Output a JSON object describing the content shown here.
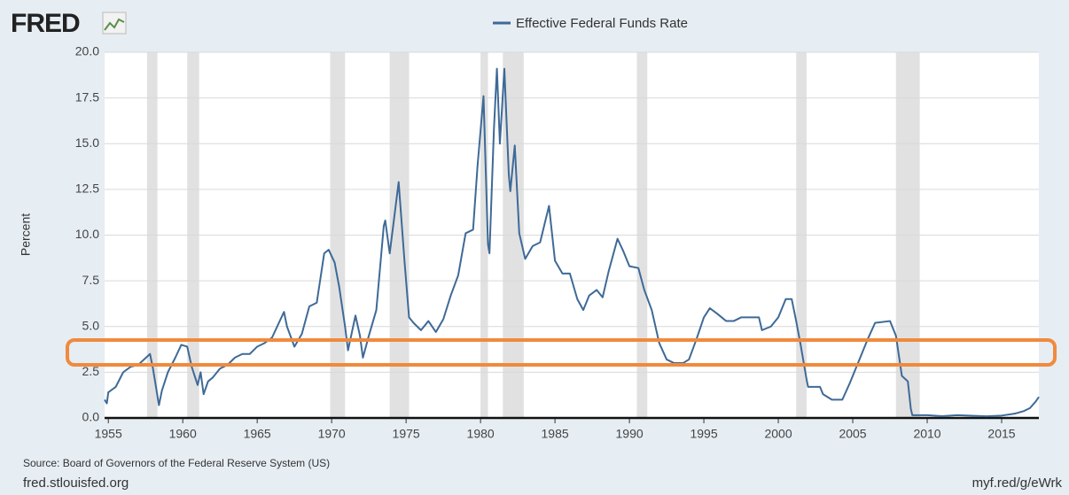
{
  "chart_data": {
    "type": "line",
    "logo": "FRED",
    "legend": "Effective Federal Funds Rate",
    "ylabel": "Percent",
    "source": "Source: Board of Governors of the Federal Reserve System (US)",
    "footer_left": "fred.stlouisfed.org",
    "footer_right": "myf.red/g/eWrk",
    "xlim": [
      1954.75,
      2017.5
    ],
    "ylim": [
      0,
      20
    ],
    "xticks": [
      1955,
      1960,
      1965,
      1970,
      1975,
      1980,
      1985,
      1990,
      1995,
      2000,
      2005,
      2010,
      2015
    ],
    "yticks": [
      {
        "value": 0,
        "label": "0.0"
      },
      {
        "value": 2.5,
        "label": "2.5"
      },
      {
        "value": 5,
        "label": "5.0"
      },
      {
        "value": 7.5,
        "label": "7.5"
      },
      {
        "value": 10,
        "label": "10.0"
      },
      {
        "value": 12.5,
        "label": "12.5"
      },
      {
        "value": 15,
        "label": "15.0"
      },
      {
        "value": 17.5,
        "label": "17.5"
      },
      {
        "value": 20,
        "label": "20.0"
      }
    ],
    "grid": true,
    "recession_color": "#e1e1e1",
    "recessions": [
      [
        1957.6,
        1958.3
      ],
      [
        1960.3,
        1961.1
      ],
      [
        1969.9,
        1970.9
      ],
      [
        1973.9,
        1975.2
      ],
      [
        1980.0,
        1980.5
      ],
      [
        1981.5,
        1982.9
      ],
      [
        1990.5,
        1991.2
      ],
      [
        2001.2,
        2001.9
      ],
      [
        2007.9,
        2009.5
      ]
    ],
    "x": [
      1954.75,
      1954.9,
      1955.0,
      1955.5,
      1956.0,
      1956.5,
      1957.0,
      1957.8,
      1958.0,
      1958.4,
      1958.6,
      1959.0,
      1959.5,
      1959.9,
      1960.3,
      1960.6,
      1961.0,
      1961.2,
      1961.4,
      1961.7,
      1962.0,
      1962.5,
      1963.0,
      1963.5,
      1964.0,
      1964.5,
      1965.0,
      1965.5,
      1966.0,
      1966.8,
      1967.0,
      1967.5,
      1968.0,
      1968.5,
      1969.0,
      1969.5,
      1969.8,
      1970.2,
      1970.5,
      1970.9,
      1971.1,
      1971.6,
      1971.9,
      1972.1,
      1972.5,
      1973.0,
      1973.5,
      1973.6,
      1973.9,
      1974.5,
      1974.9,
      1975.2,
      1975.5,
      1976.0,
      1976.5,
      1977.0,
      1977.5,
      1978.0,
      1978.5,
      1979.0,
      1979.5,
      1979.8,
      1980.2,
      1980.5,
      1980.6,
      1980.9,
      1981.1,
      1981.3,
      1981.6,
      1981.9,
      1982.0,
      1982.3,
      1982.6,
      1983.0,
      1983.5,
      1984.0,
      1984.6,
      1985.0,
      1985.5,
      1986.0,
      1986.5,
      1986.9,
      1987.3,
      1987.8,
      1988.2,
      1988.6,
      1989.2,
      1989.6,
      1990.0,
      1990.6,
      1991.0,
      1991.5,
      1992.0,
      1992.5,
      1993.0,
      1993.6,
      1994.0,
      1994.5,
      1995.0,
      1995.4,
      1995.9,
      1996.5,
      1997.0,
      1997.5,
      1998.0,
      1998.7,
      1998.9,
      1999.5,
      2000.0,
      2000.5,
      2000.9,
      2001.2,
      2001.5,
      2001.9,
      2002.0,
      2002.8,
      2003.0,
      2003.6,
      2004.3,
      2004.8,
      2005.5,
      2006.0,
      2006.5,
      2007.5,
      2007.9,
      2008.3,
      2008.7,
      2008.9,
      2009.0,
      2010.0,
      2011.0,
      2012.0,
      2013.0,
      2014.0,
      2015.0,
      2015.9,
      2016.5,
      2016.9,
      2017.3,
      2017.5
    ],
    "series": [
      {
        "name": "Effective Federal Funds Rate",
        "color": "#3e6a97",
        "values": [
          1.0,
          0.8,
          1.4,
          1.7,
          2.5,
          2.8,
          2.9,
          3.5,
          2.7,
          0.7,
          1.5,
          2.5,
          3.3,
          4.0,
          3.9,
          2.8,
          1.8,
          2.5,
          1.3,
          2.0,
          2.2,
          2.7,
          2.9,
          3.3,
          3.5,
          3.5,
          3.9,
          4.1,
          4.4,
          5.8,
          5.0,
          3.9,
          4.6,
          6.1,
          6.3,
          9.0,
          9.2,
          8.5,
          7.2,
          5.0,
          3.7,
          5.6,
          4.5,
          3.3,
          4.5,
          5.9,
          10.5,
          10.8,
          9.0,
          12.9,
          8.5,
          5.5,
          5.2,
          4.8,
          5.3,
          4.7,
          5.4,
          6.7,
          7.8,
          10.1,
          10.3,
          13.8,
          17.6,
          9.5,
          9.0,
          15.8,
          19.1,
          15.0,
          19.1,
          13.3,
          12.4,
          14.9,
          10.1,
          8.7,
          9.4,
          9.6,
          11.6,
          8.6,
          7.9,
          7.9,
          6.5,
          5.9,
          6.7,
          7.0,
          6.6,
          8.0,
          9.8,
          9.1,
          8.3,
          8.2,
          7.0,
          5.9,
          4.1,
          3.2,
          3.0,
          3.0,
          3.2,
          4.3,
          5.5,
          6.0,
          5.7,
          5.3,
          5.3,
          5.5,
          5.5,
          5.5,
          4.8,
          5.0,
          5.5,
          6.5,
          6.5,
          5.3,
          4.0,
          2.1,
          1.7,
          1.7,
          1.3,
          1.0,
          1.0,
          1.9,
          3.3,
          4.3,
          5.2,
          5.3,
          4.5,
          2.3,
          2.0,
          0.5,
          0.15,
          0.15,
          0.1,
          0.15,
          0.12,
          0.09,
          0.13,
          0.24,
          0.38,
          0.54,
          0.91,
          1.15
        ]
      }
    ]
  }
}
